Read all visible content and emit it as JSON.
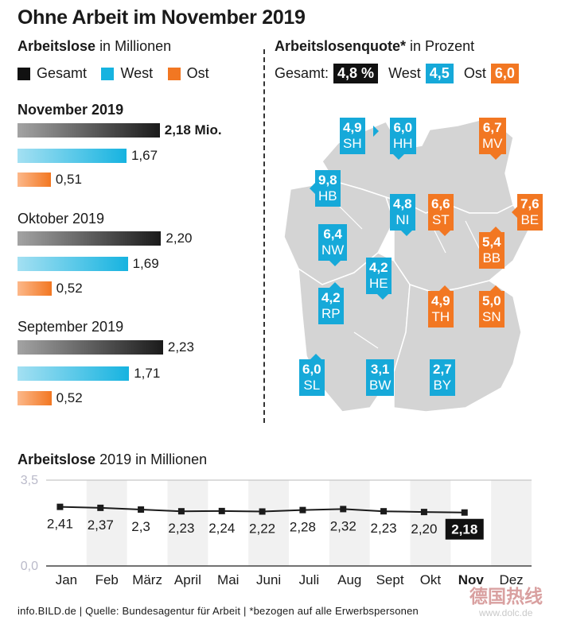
{
  "title": "Ohne Arbeit im November 2019",
  "left": {
    "subtitle_bold": "Arbeitslose",
    "subtitle_rest": "in Millionen",
    "legend": [
      {
        "label": "Gesamt",
        "color": "#111111"
      },
      {
        "label": "West",
        "color": "#16b3e0"
      },
      {
        "label": "Ost",
        "color": "#f27722"
      }
    ]
  },
  "right": {
    "subtitle_bold": "Arbeitslosenquote*",
    "subtitle_rest": "in Prozent",
    "gesamt_label": "Gesamt:",
    "gesamt_value": "4,8 %",
    "west_label": "West",
    "west_value": "4,5",
    "ost_label": "Ost",
    "ost_value": "6,0"
  },
  "map_states": [
    {
      "value": "4,9",
      "code": "SH",
      "group": "West"
    },
    {
      "value": "6,0",
      "code": "HH",
      "group": "West"
    },
    {
      "value": "6,7",
      "code": "MV",
      "group": "Ost"
    },
    {
      "value": "9,8",
      "code": "HB",
      "group": "West"
    },
    {
      "value": "4,8",
      "code": "NI",
      "group": "West"
    },
    {
      "value": "6,6",
      "code": "ST",
      "group": "Ost"
    },
    {
      "value": "7,6",
      "code": "BE",
      "group": "Ost"
    },
    {
      "value": "6,4",
      "code": "NW",
      "group": "West"
    },
    {
      "value": "4,2",
      "code": "HE",
      "group": "West"
    },
    {
      "value": "5,4",
      "code": "BB",
      "group": "Ost"
    },
    {
      "value": "4,2",
      "code": "RP",
      "group": "West"
    },
    {
      "value": "4,9",
      "code": "TH",
      "group": "Ost"
    },
    {
      "value": "5,0",
      "code": "SN",
      "group": "Ost"
    },
    {
      "value": "6,0",
      "code": "SL",
      "group": "West"
    },
    {
      "value": "3,1",
      "code": "BW",
      "group": "West"
    },
    {
      "value": "2,7",
      "code": "BY",
      "group": "West"
    }
  ],
  "chart_data": [
    {
      "type": "bar",
      "title": "Arbeitslose in Millionen",
      "categories": [
        "November 2019",
        "Oktober 2019",
        "September 2019"
      ],
      "series": [
        {
          "name": "Gesamt",
          "values": [
            2.18,
            2.2,
            2.23
          ],
          "labels": [
            "2,18 Mio.",
            "2,20",
            "2,23"
          ]
        },
        {
          "name": "West",
          "values": [
            1.67,
            1.69,
            1.71
          ],
          "labels": [
            "1,67",
            "1,69",
            "1,71"
          ]
        },
        {
          "name": "Ost",
          "values": [
            0.51,
            0.52,
            0.52
          ],
          "labels": [
            "0,51",
            "0,52",
            "0,52"
          ]
        }
      ]
    },
    {
      "type": "line",
      "title_bold": "Arbeitslose",
      "title_rest": "2019 in Millionen",
      "categories": [
        "Jan",
        "Feb",
        "März",
        "April",
        "Mai",
        "Juni",
        "Juli",
        "Aug",
        "Sept",
        "Okt",
        "Nov",
        "Dez"
      ],
      "values": [
        2.41,
        2.37,
        2.3,
        2.23,
        2.24,
        2.22,
        2.28,
        2.32,
        2.23,
        2.2,
        2.18,
        null
      ],
      "labels": [
        "2,41",
        "2,37",
        "2,3",
        "2,23",
        "2,24",
        "2,22",
        "2,28",
        "2,32",
        "2,23",
        "2,20",
        "2,18",
        ""
      ],
      "highlight": "Nov",
      "ylim": [
        0,
        3.5
      ],
      "ytick_labels": [
        "3,5",
        "0,0"
      ]
    }
  ],
  "footer": "info.BILD.de | Quelle: Bundesagentur für Arbeit | *bezogen auf alle Erwerbspersonen",
  "watermark": "德国热线 www.dolc.de"
}
